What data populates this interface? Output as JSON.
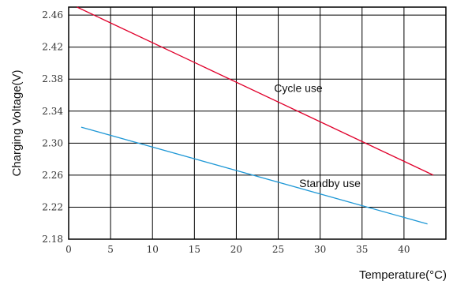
{
  "chart_data": {
    "type": "line",
    "xlabel": "Temperature(°C)",
    "ylabel": "Charging Voltage(V)",
    "xlim": [
      0,
      45
    ],
    "ylim": [
      2.18,
      2.47
    ],
    "x_ticks": [
      "0",
      "5",
      "10",
      "15",
      "20",
      "25",
      "30",
      "35",
      "40"
    ],
    "y_ticks": [
      "2.46",
      "2.42",
      "2.38",
      "2.34",
      "2.30",
      "2.26",
      "2.22",
      "2.18"
    ],
    "grid": true,
    "series": [
      {
        "name": "Cycle use",
        "color": "#e0002b",
        "points": [
          [
            1,
            2.47
          ],
          [
            43.5,
            2.26
          ]
        ]
      },
      {
        "name": "Standby use",
        "color": "#1f98d6",
        "points": [
          [
            1.5,
            2.32
          ],
          [
            42.8,
            2.199
          ]
        ]
      }
    ],
    "annotations": [
      {
        "text": "Cycle use",
        "x": 24.5,
        "y": 2.364
      },
      {
        "text": "Standby use",
        "x": 27.5,
        "y": 2.245
      }
    ]
  }
}
